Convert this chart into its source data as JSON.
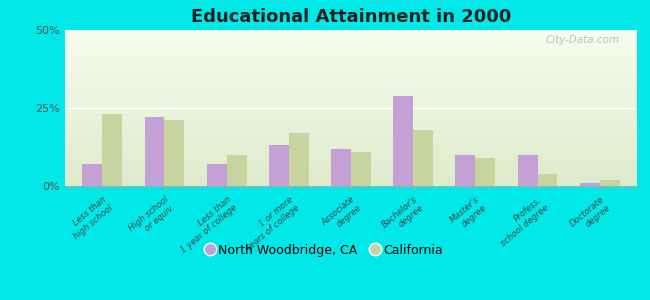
{
  "title": "Educational Attainment in 2000",
  "categories": [
    "Less than\nhigh school",
    "High school\nor equiv.",
    "Less than\n1 year of college",
    "1 or more\nyears of college",
    "Associate\ndegree",
    "Bachelor's\ndegree",
    "Master's\ndegree",
    "Profess.\nschool degree",
    "Doctorate\ndegree"
  ],
  "north_woodbridge": [
    7,
    22,
    7,
    13,
    12,
    29,
    10,
    10,
    1
  ],
  "california": [
    23,
    21,
    10,
    17,
    11,
    18,
    9,
    4,
    2
  ],
  "color_nw": "#c4a0d4",
  "color_ca": "#c8d4a0",
  "background_color": "#00e8e8",
  "ylim": [
    0,
    50
  ],
  "yticks": [
    0,
    25,
    50
  ],
  "ytick_labels": [
    "0%",
    "25%",
    "50%"
  ],
  "legend_labels": [
    "North Woodbridge, CA",
    "California"
  ],
  "bar_width": 0.32
}
